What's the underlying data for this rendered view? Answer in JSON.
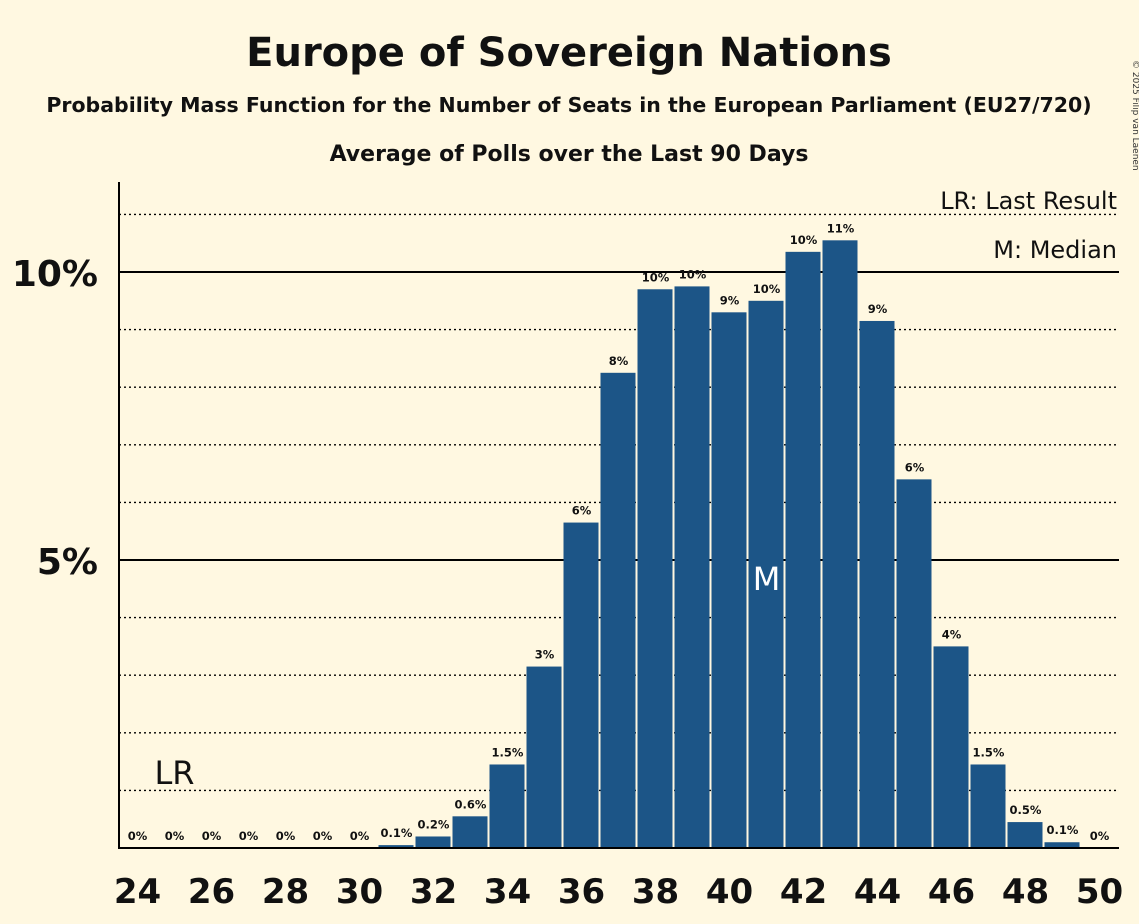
{
  "page": {
    "title": "Europe of Sovereign Nations",
    "subtitle": "Probability Mass Function for the Number of Seats in the European Parliament (EU27/720)",
    "subtitle2": "Average of Polls over the Last 90 Days",
    "copyright": "© 2025 Filip van Laenen"
  },
  "legend": {
    "last_result": "LR: Last Result",
    "median": "M: Median"
  },
  "markers": {
    "last_result_label": "LR",
    "last_result_seat": 25,
    "median_label": "M",
    "median_seat": 41
  },
  "colors": {
    "background": "#fff8e1",
    "bar": "#1c5587",
    "axis": "#000000"
  },
  "chart_data": {
    "type": "bar",
    "title": "Europe of Sovereign Nations",
    "xlabel": "",
    "ylabel": "",
    "categories": [
      24,
      25,
      26,
      27,
      28,
      29,
      30,
      31,
      32,
      33,
      34,
      35,
      36,
      37,
      38,
      39,
      40,
      41,
      42,
      43,
      44,
      45,
      46,
      47,
      48,
      49,
      50
    ],
    "values": [
      0,
      0,
      0,
      0,
      0,
      0,
      0,
      0.05,
      0.2,
      0.55,
      1.45,
      3.15,
      5.65,
      8.25,
      9.7,
      9.75,
      9.3,
      9.5,
      10.35,
      10.55,
      9.15,
      6.4,
      3.5,
      1.45,
      0.45,
      0.1,
      0
    ],
    "data_labels": [
      "0%",
      "0%",
      "0%",
      "0%",
      "0%",
      "0%",
      "0%",
      "0.1%",
      "0.2%",
      "0.6%",
      "1.5%",
      "3%",
      "6%",
      "8%",
      "10%",
      "10%",
      "9%",
      "10%",
      "10%",
      "11%",
      "9%",
      "6%",
      "4%",
      "1.5%",
      "0.5%",
      "0.1%",
      "0%"
    ],
    "x_ticks": [
      "24",
      "26",
      "28",
      "30",
      "32",
      "34",
      "36",
      "38",
      "40",
      "42",
      "44",
      "46",
      "48",
      "50"
    ],
    "y_ticks": [
      {
        "value": 5,
        "label": "5%"
      },
      {
        "value": 10,
        "label": "10%"
      }
    ],
    "ylim": [
      0,
      11.5
    ],
    "grid": "dotted every 1%, solid at 5% and 10%",
    "legend_position": "top-right"
  }
}
